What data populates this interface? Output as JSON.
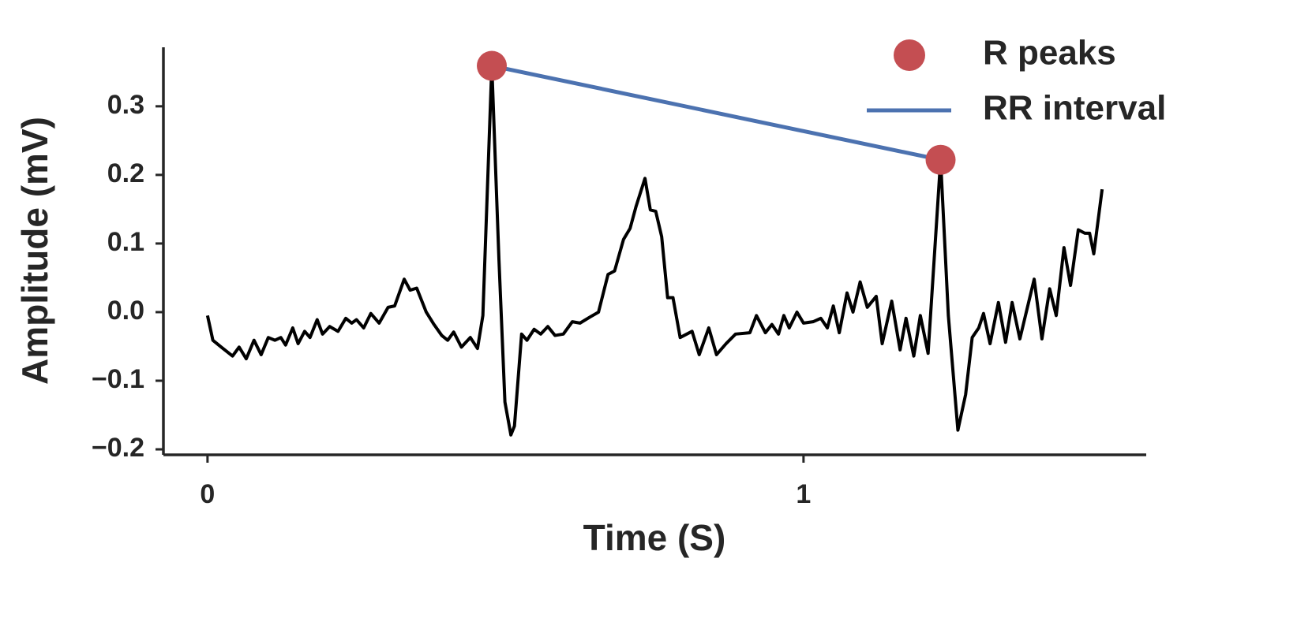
{
  "chart_data": {
    "type": "line",
    "xlabel": "Time (S)",
    "ylabel": "Amplitude (mV)",
    "xlim": [
      -0.074,
      1.575
    ],
    "ylim": [
      -0.208,
      0.386
    ],
    "xticks": [
      0,
      1
    ],
    "yticks": [
      {
        "value": -0.2,
        "label": "−0.2"
      },
      {
        "value": -0.1,
        "label": "−0.1"
      },
      {
        "value": 0,
        "label": "0.0"
      },
      0.1,
      0.2,
      0.3
    ],
    "color": "#000000",
    "x": [
      0,
      0.009,
      0.023,
      0.042,
      0.053,
      0.065,
      0.078,
      0.09,
      0.102,
      0.113,
      0.123,
      0.131,
      0.143,
      0.152,
      0.163,
      0.172,
      0.184,
      0.193,
      0.205,
      0.219,
      0.232,
      0.242,
      0.25,
      0.262,
      0.274,
      0.288,
      0.303,
      0.314,
      0.33,
      0.34,
      0.351,
      0.367,
      0.38,
      0.393,
      0.403,
      0.413,
      0.426,
      0.441,
      0.453,
      0.462,
      0.477,
      0.489,
      0.499,
      0.509,
      0.515,
      0.527,
      0.536,
      0.548,
      0.559,
      0.571,
      0.583,
      0.597,
      0.612,
      0.625,
      0.642,
      0.656,
      0.672,
      0.683,
      0.698,
      0.709,
      0.719,
      0.734,
      0.743,
      0.752,
      0.762,
      0.772,
      0.781,
      0.793,
      0.813,
      0.825,
      0.841,
      0.854,
      0.87,
      0.886,
      0.91,
      0.921,
      0.936,
      0.947,
      0.958,
      0.967,
      0.976,
      0.989,
      1.0,
      1.016,
      1.029,
      1.04,
      1.05,
      1.06,
      1.073,
      1.083,
      1.095,
      1.107,
      1.122,
      1.132,
      1.148,
      1.162,
      1.172,
      1.185,
      1.196,
      1.209,
      1.23,
      1.243,
      1.259,
      1.272,
      1.283,
      1.294,
      1.302,
      1.313,
      1.327,
      1.339,
      1.35,
      1.363,
      1.387,
      1.4,
      1.413,
      1.424,
      1.437,
      1.448,
      1.461,
      1.472,
      1.48,
      1.487,
      1.501
    ],
    "values": [
      -0.005,
      -0.041,
      -0.051,
      -0.064,
      -0.051,
      -0.068,
      -0.041,
      -0.062,
      -0.037,
      -0.041,
      -0.037,
      -0.048,
      -0.023,
      -0.046,
      -0.028,
      -0.037,
      -0.011,
      -0.032,
      -0.021,
      -0.028,
      -0.009,
      -0.016,
      -0.011,
      -0.023,
      -0.002,
      -0.016,
      0.007,
      0.009,
      0.048,
      0.032,
      0.035,
      0,
      -0.018,
      -0.034,
      -0.041,
      -0.029,
      -0.051,
      -0.037,
      -0.053,
      -0.005,
      0.359,
      0.076,
      -0.131,
      -0.179,
      -0.166,
      -0.032,
      -0.041,
      -0.025,
      -0.032,
      -0.021,
      -0.034,
      -0.032,
      -0.014,
      -0.016,
      -0.007,
      0,
      0.055,
      0.06,
      0.106,
      0.122,
      0.154,
      0.195,
      0.149,
      0.147,
      0.11,
      0.021,
      0.021,
      -0.037,
      -0.028,
      -0.062,
      -0.023,
      -0.062,
      -0.046,
      -0.032,
      -0.03,
      -0.005,
      -0.03,
      -0.018,
      -0.032,
      -0.005,
      -0.023,
      0,
      -0.016,
      -0.014,
      -0.009,
      -0.023,
      0.009,
      -0.03,
      0.028,
      0,
      0.044,
      0.007,
      0.023,
      -0.046,
      0.016,
      -0.055,
      -0.009,
      -0.064,
      -0.005,
      -0.06,
      0.222,
      -0.005,
      -0.172,
      -0.12,
      -0.037,
      -0.023,
      -0.002,
      -0.046,
      0.014,
      -0.044,
      0.014,
      -0.039,
      0.048,
      -0.039,
      0.034,
      -0.005,
      0.094,
      0.039,
      0.12,
      0.115,
      0.115,
      0.085,
      0.179
    ],
    "peaks": {
      "name": "R peaks",
      "color": "#c44e52",
      "x": [
        0.477,
        1.23
      ],
      "values": [
        0.359,
        0.222
      ]
    },
    "rr_interval": {
      "name": "RR interval",
      "color": "#4c72b0"
    },
    "legend": "upper right"
  }
}
